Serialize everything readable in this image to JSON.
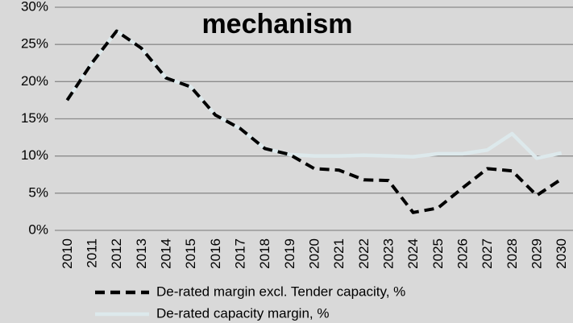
{
  "chart_data": {
    "type": "line",
    "title": "mechanism",
    "categories": [
      "2010",
      "2011",
      "2012",
      "2013",
      "2014",
      "2015",
      "2016",
      "2017",
      "2018",
      "2019",
      "2020",
      "2021",
      "2022",
      "2023",
      "2024",
      "2025",
      "2026",
      "2027",
      "2028",
      "2029",
      "2030"
    ],
    "series": [
      {
        "name": "De-rated margin excl. Tender capacity, %",
        "color": "#000000",
        "dashed": true,
        "values": [
          17.5,
          22.5,
          26.8,
          24.5,
          20.5,
          19.3,
          15.5,
          13.7,
          11,
          10.2,
          8.3,
          8.1,
          6.8,
          6.7,
          2.4,
          3,
          5.7,
          8.3,
          8,
          4.7,
          6.9
        ]
      },
      {
        "name": "De-rated capacity margin, %",
        "color": "#dde9ec",
        "dashed": false,
        "values": [
          17.5,
          22.5,
          26.8,
          24.5,
          20.5,
          19.3,
          15.5,
          13.7,
          11,
          10.2,
          10,
          10,
          10.1,
          10,
          9.9,
          10.3,
          10.3,
          10.8,
          13,
          9.7,
          10.4
        ]
      }
    ],
    "ylim": [
      0,
      30
    ],
    "yticks": [
      {
        "value": 0,
        "label": "0%"
      },
      {
        "value": 5,
        "label": "5%"
      },
      {
        "value": 10,
        "label": "10%"
      },
      {
        "value": 15,
        "label": "15%"
      },
      {
        "value": 20,
        "label": "20%"
      },
      {
        "value": 25,
        "label": "25%"
      },
      {
        "value": 30,
        "label": "30%"
      }
    ],
    "grid": true
  }
}
